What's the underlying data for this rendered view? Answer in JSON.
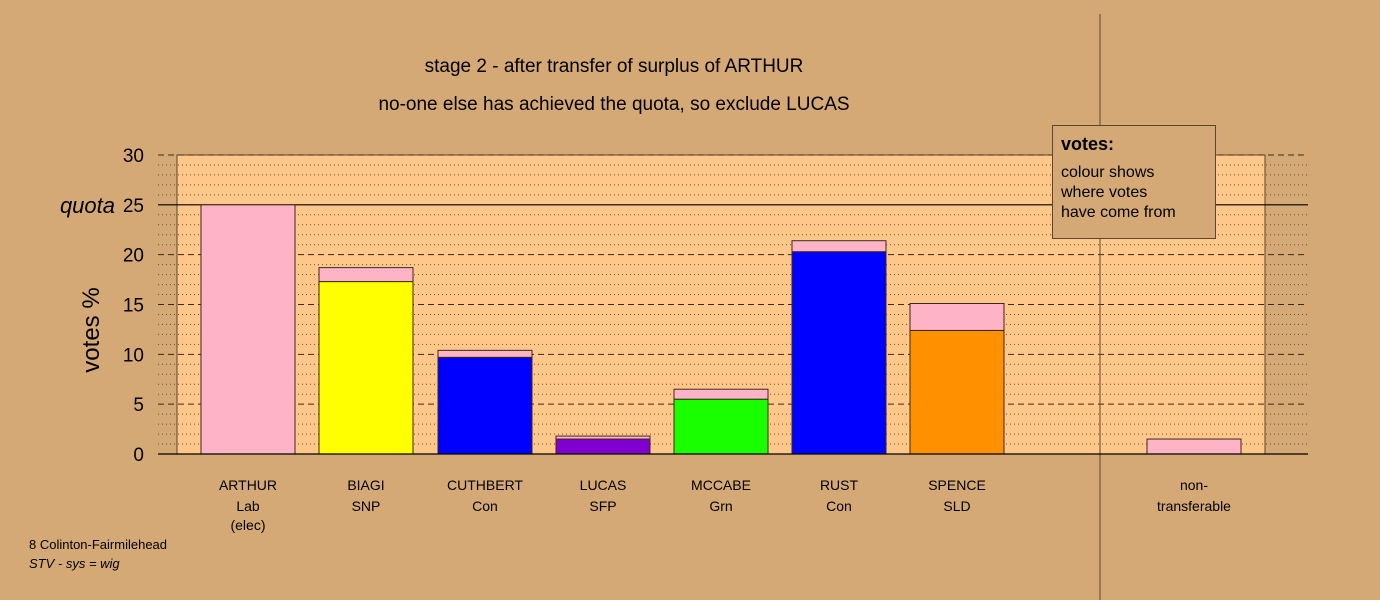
{
  "chart_data": {
    "type": "bar",
    "stacked": true,
    "title": "stage 2 - after transfer of surplus of ARTHUR",
    "subtitle": "no-one else has achieved the quota, so exclude LUCAS",
    "ylabel": "votes %",
    "ylim": [
      0,
      30
    ],
    "yticks": [
      "0",
      "5",
      "10",
      "15",
      "20",
      "25",
      "30"
    ],
    "quota_label": "quota",
    "quota_value": 25,
    "grid": true,
    "candidates": [
      {
        "name": "ARTHUR",
        "party": "Lab",
        "note": "(elec)",
        "own": 25.0,
        "transferred": 0.0,
        "color": "#ffb3c6"
      },
      {
        "name": "BIAGI",
        "party": "SNP",
        "note": "",
        "own": 17.3,
        "transferred": 1.4,
        "color": "#ffff00"
      },
      {
        "name": "CUTHBERT",
        "party": "Con",
        "note": "",
        "own": 9.7,
        "transferred": 0.7,
        "color": "#0000ff"
      },
      {
        "name": "LUCAS",
        "party": "SFP",
        "note": "",
        "own": 1.5,
        "transferred": 0.3,
        "color": "#8000d0"
      },
      {
        "name": "MCCABE",
        "party": "Grn",
        "note": "",
        "own": 5.5,
        "transferred": 1.0,
        "color": "#1aff00"
      },
      {
        "name": "RUST",
        "party": "Con",
        "note": "",
        "own": 20.3,
        "transferred": 1.1,
        "color": "#0000ff"
      },
      {
        "name": "SPENCE",
        "party": "SLD",
        "note": "",
        "own": 12.4,
        "transferred": 2.7,
        "color": "#ff9000"
      }
    ],
    "transfer_color": "#ffb3c6",
    "nontransferable": {
      "label1": "non-",
      "label2": "transferable",
      "value": 1.5,
      "color": "#ffb3c6"
    }
  },
  "legend": {
    "title": "votes:",
    "line1": "colour shows",
    "line2": "where votes",
    "line3": "have come from"
  },
  "footer": {
    "ward": "8 Colinton-Fairmilehead",
    "system": "STV - sys = wig"
  }
}
